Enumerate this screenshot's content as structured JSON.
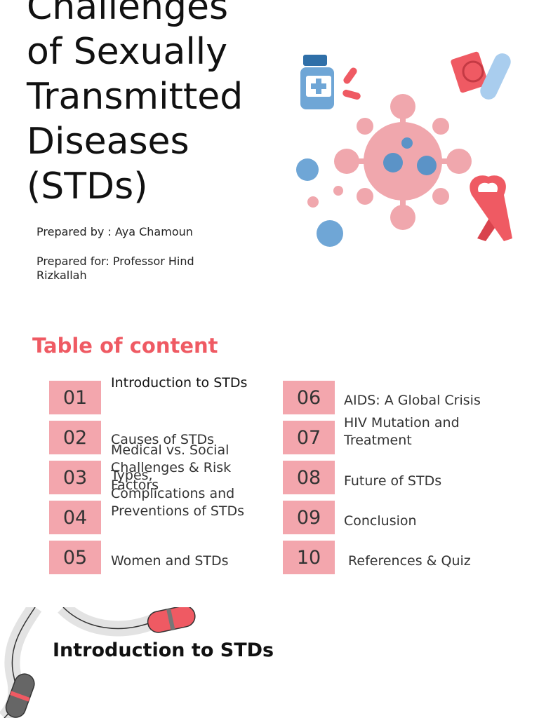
{
  "cover": {
    "title_lines": [
      "Challenges",
      "of Sexually",
      "Transmitted",
      "Diseases",
      "(STDs)"
    ],
    "prepared_by": "Prepared by : Aya Chamoun",
    "prepared_for": "Prepared for: Professor Hind Rizkallah"
  },
  "toc": {
    "heading": "Table of content",
    "items": [
      {
        "num": "01",
        "label": "Introduction to STDs"
      },
      {
        "num": "02",
        "label": "Causes of STDs"
      },
      {
        "num": "03",
        "label": "Types,"
      },
      {
        "num": "04",
        "label": "Complications and Preventions of STDs"
      },
      {
        "num": "05",
        "label": "Women and STDs"
      },
      {
        "num": "06",
        "label": "AIDS: A Global Crisis"
      },
      {
        "num": "07",
        "label": "HIV Mutation and Treatment"
      },
      {
        "num": "08",
        "label": "Future of STDs"
      },
      {
        "num": "09",
        "label": "Conclusion"
      },
      {
        "num": "10",
        "label": " References & Quiz"
      }
    ],
    "overlap_label": "Medical vs. Social Challenges & Risk Factors"
  },
  "section": {
    "title": "Introduction to STDs"
  },
  "colors": {
    "accent": "#ef5a63",
    "number_box": "#f3a6ad",
    "virus": "#f0a7ad",
    "blue": "#6fa6d6"
  },
  "illustration_icons": [
    "pill-bottle-icon",
    "capsule-icon",
    "condom-icon",
    "virus-icon",
    "awareness-ribbon-icon",
    "road-path-icon"
  ]
}
